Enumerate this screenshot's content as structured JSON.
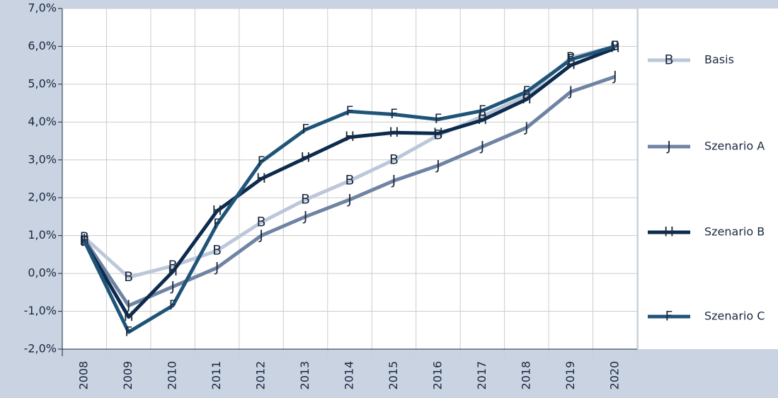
{
  "chart_data": {
    "type": "line",
    "categories": [
      "2008",
      "2009",
      "2010",
      "2011",
      "2012",
      "2013",
      "2014",
      "2015",
      "2016",
      "2017",
      "2018",
      "2019",
      "2020"
    ],
    "ylim": [
      -2,
      7
    ],
    "yticks": [
      {
        "value": -2,
        "label": "-2,0%"
      },
      {
        "value": -1,
        "label": "-1,0%"
      },
      {
        "value": 0,
        "label": "0,0%"
      },
      {
        "value": 1,
        "label": "1,0%"
      },
      {
        "value": 2,
        "label": "2,0%"
      },
      {
        "value": 3,
        "label": "3,0%"
      },
      {
        "value": 4,
        "label": "4,0%"
      },
      {
        "value": 5,
        "label": "5,0%"
      },
      {
        "value": 6,
        "label": "6,0%"
      },
      {
        "value": 7,
        "label": "7,0%"
      }
    ],
    "grid": true,
    "legend": "right",
    "series": [
      {
        "name": "Basis",
        "color": "#bcc7da",
        "marker": "B",
        "values": [
          0.95,
          -0.1,
          0.2,
          0.6,
          1.35,
          1.95,
          2.45,
          3.0,
          3.65,
          4.15,
          4.7,
          5.7,
          6.0
        ]
      },
      {
        "name": "Szenario A",
        "color": "#6f83a3",
        "marker": "J",
        "values": [
          0.9,
          -0.85,
          -0.35,
          0.15,
          1.0,
          1.5,
          1.95,
          2.45,
          2.85,
          3.35,
          3.85,
          4.8,
          5.2
        ]
      },
      {
        "name": "Szenario B",
        "color": "#0d2b4d",
        "marker": "H",
        "values": [
          0.85,
          -1.15,
          0.05,
          1.65,
          2.5,
          3.05,
          3.6,
          3.72,
          3.7,
          4.05,
          4.6,
          5.5,
          5.95
        ]
      },
      {
        "name": "Szenario C",
        "color": "#1f5478",
        "marker": "F",
        "values": [
          0.85,
          -1.55,
          -0.85,
          1.3,
          2.95,
          3.8,
          4.28,
          4.2,
          4.07,
          4.3,
          4.8,
          5.65,
          6.0
        ]
      }
    ]
  }
}
